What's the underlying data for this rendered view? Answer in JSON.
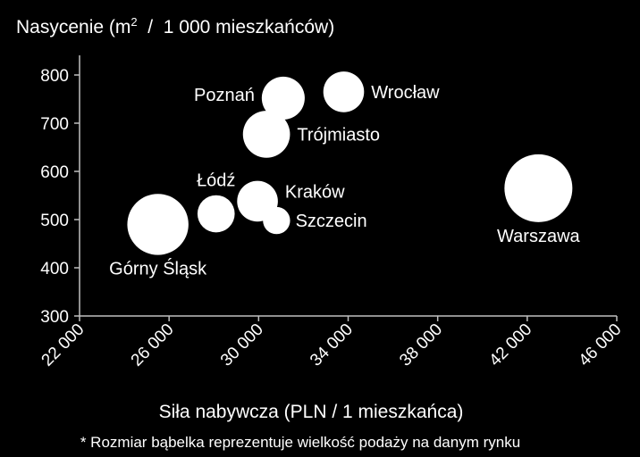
{
  "chart_data": {
    "type": "bubble",
    "ylabel": {
      "prefix": "Nasycenie (m",
      "superscript": "2",
      "suffix": "  /  1 000 mieszkańców)"
    },
    "xlabel": "Siła nabywcza (PLN / 1 mieszkańca)",
    "footnote": "* Rozmiar bąbelka reprezentuje wielkość podaży na danym rynku",
    "xlim": [
      22000,
      46000
    ],
    "ylim": [
      300,
      800
    ],
    "x_ticks": [
      {
        "value": 22000,
        "label": "22 000"
      },
      {
        "value": 26000,
        "label": "26 000"
      },
      {
        "value": 30000,
        "label": "30 000"
      },
      {
        "value": 34000,
        "label": "34 000"
      },
      {
        "value": 38000,
        "label": "38 000"
      },
      {
        "value": 42000,
        "label": "42 000"
      },
      {
        "value": 46000,
        "label": "46 000"
      }
    ],
    "y_ticks": [
      {
        "value": 300,
        "label": "300"
      },
      {
        "value": 400,
        "label": "400"
      },
      {
        "value": 500,
        "label": "500"
      },
      {
        "value": 600,
        "label": "600"
      },
      {
        "value": 700,
        "label": "700"
      },
      {
        "value": 800,
        "label": "800"
      }
    ],
    "bubble_color": "#ffffff",
    "points": [
      {
        "name": "Warszawa",
        "x": 42500,
        "y": 565,
        "size": 1.0,
        "label_pos": "below"
      },
      {
        "name": "Górny Śląsk",
        "x": 25500,
        "y": 490,
        "size": 0.81,
        "label_pos": "below"
      },
      {
        "name": "Wrocław",
        "x": 33800,
        "y": 765,
        "size": 0.36,
        "label_pos": "right"
      },
      {
        "name": "Poznań",
        "x": 31100,
        "y": 752,
        "size": 0.4,
        "label_pos": "left"
      },
      {
        "name": "Trójmiasto",
        "x": 30350,
        "y": 677,
        "size": 0.48,
        "label_pos": "right"
      },
      {
        "name": "Łódź",
        "x": 28100,
        "y": 512,
        "size": 0.3,
        "label_pos": "above"
      },
      {
        "name": "Kraków",
        "x": 29950,
        "y": 538,
        "size": 0.36,
        "label_pos": "right"
      },
      {
        "name": "Szczecin",
        "x": 30800,
        "y": 498,
        "size": 0.16,
        "label_pos": "right"
      }
    ]
  }
}
